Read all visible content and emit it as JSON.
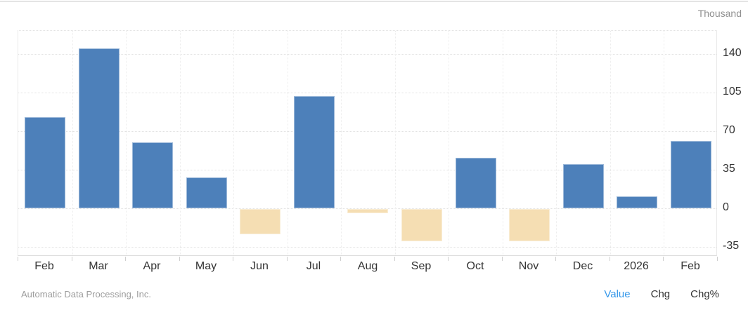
{
  "chart_data": {
    "type": "bar",
    "unit": "Thousand",
    "categories": [
      "Feb",
      "Mar",
      "Apr",
      "May",
      "Jun",
      "Jul",
      "Aug",
      "Sep",
      "Oct",
      "Nov",
      "Dec",
      "2026",
      "Feb"
    ],
    "values": [
      83,
      145,
      60,
      28,
      -23,
      102,
      -4,
      -29,
      46,
      -29,
      40,
      11,
      61
    ],
    "yticks": [
      140,
      105,
      70,
      35,
      0,
      -35
    ],
    "ylim": [
      -42.5,
      158.8
    ],
    "grid": true,
    "legend_position": "none",
    "positive_color": "#4d80ba",
    "negative_color": "#f5deb3"
  },
  "footer": {
    "source": "Automatic Data Processing, Inc.",
    "modes": [
      {
        "label": "Value",
        "active": true
      },
      {
        "label": "Chg",
        "active": false
      },
      {
        "label": "Chg%",
        "active": false
      }
    ],
    "active_color": "#3598ea",
    "inactive_color": "#333333"
  }
}
